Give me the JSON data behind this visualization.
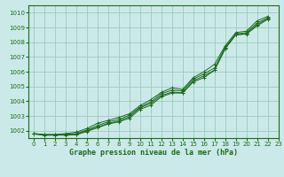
{
  "title": "Graphe pression niveau de la mer (hPa)",
  "bg_color": "#cce9e9",
  "grid_color": "#99ccbb",
  "line_color": "#1a6b1a",
  "xlim": [
    -0.5,
    23
  ],
  "ylim": [
    1001.5,
    1010.5
  ],
  "yticks": [
    1002,
    1003,
    1004,
    1005,
    1006,
    1007,
    1008,
    1009,
    1010
  ],
  "xticks": [
    0,
    1,
    2,
    3,
    4,
    5,
    6,
    7,
    8,
    9,
    10,
    11,
    12,
    13,
    14,
    15,
    16,
    17,
    18,
    19,
    20,
    21,
    22,
    23
  ],
  "series_top": [
    1001.8,
    1001.75,
    1001.75,
    1001.8,
    1001.9,
    1002.15,
    1002.5,
    1002.7,
    1002.9,
    1003.15,
    1003.7,
    1004.1,
    1004.6,
    1004.9,
    1004.8,
    1005.6,
    1006.0,
    1006.5,
    1007.75,
    1008.65,
    1008.75,
    1009.45,
    1009.75
  ],
  "series_upper_mid": [
    1001.8,
    1001.72,
    1001.72,
    1001.75,
    1001.8,
    1002.05,
    1002.35,
    1002.6,
    1002.75,
    1003.05,
    1003.6,
    1003.95,
    1004.5,
    1004.75,
    1004.7,
    1005.5,
    1005.85,
    1006.25,
    1007.65,
    1008.55,
    1008.65,
    1009.3,
    1009.65
  ],
  "series_lower_mid": [
    1001.78,
    1001.7,
    1001.7,
    1001.72,
    1001.75,
    1002.0,
    1002.25,
    1002.5,
    1002.65,
    1002.95,
    1003.55,
    1003.85,
    1004.38,
    1004.62,
    1004.58,
    1005.38,
    1005.72,
    1006.1,
    1007.58,
    1008.5,
    1008.58,
    1009.2,
    1009.58
  ],
  "series_bump": [
    1001.78,
    1001.7,
    1001.7,
    1001.7,
    1001.72,
    1001.95,
    1002.2,
    1002.45,
    1002.6,
    1002.85,
    1003.45,
    1003.72,
    1004.3,
    1004.55,
    1004.55,
    1005.3,
    1005.6,
    1006.1,
    1007.55,
    1008.5,
    1008.55,
    1009.1,
    1009.55
  ],
  "title_fontsize": 6.0,
  "tick_fontsize": 5.0
}
